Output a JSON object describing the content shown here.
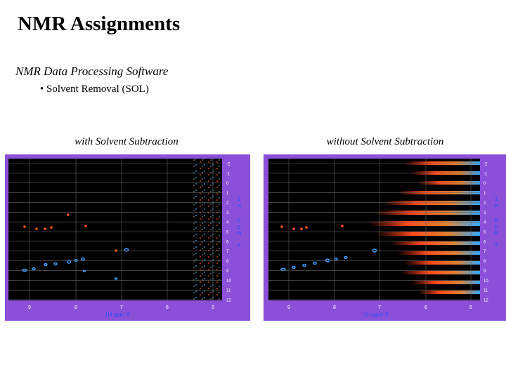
{
  "header": {
    "title": "NMR Assignments",
    "subtitle": "NMR Data Processing Software",
    "bullet": "• Solvent Removal (SOL)"
  },
  "panels": [
    {
      "caption": "with Solvent Subtraction",
      "x_ticks": [
        "9",
        "8",
        "7",
        "6",
        "5"
      ],
      "x_axis_label": "1H ppm X",
      "y_ticks": [
        "-2",
        "-1",
        "0",
        "1",
        "2",
        "3",
        "4",
        "5",
        "6",
        "7",
        "8",
        "9",
        "10",
        "11",
        "12"
      ],
      "y_axis_label": [
        "1",
        "H",
        "p",
        "p",
        "m",
        "Y"
      ]
    },
    {
      "caption": "without Solvent Subtraction",
      "x_ticks": [
        "9",
        "8",
        "7",
        "6",
        "5"
      ],
      "x_axis_label": "1H ppm X",
      "y_ticks": [
        "-2",
        "-1",
        "0",
        "1",
        "2",
        "3",
        "4",
        "5",
        "6",
        "7",
        "8",
        "9",
        "10",
        "11",
        "12"
      ],
      "y_axis_label": [
        "1",
        "H",
        "p",
        "p",
        "m",
        "Y"
      ]
    }
  ]
}
